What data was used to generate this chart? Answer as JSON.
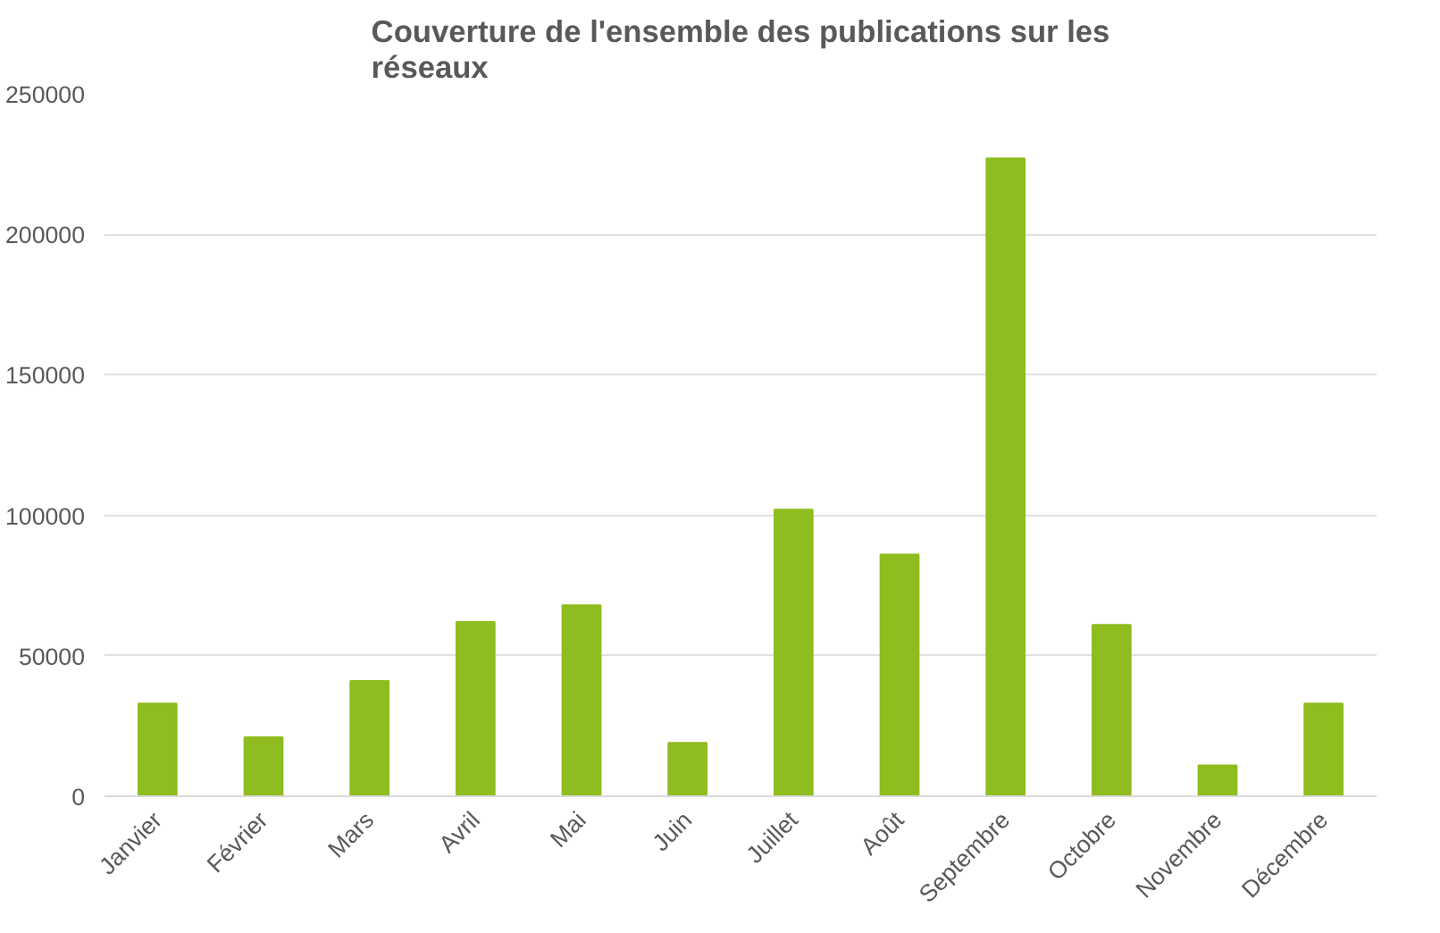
{
  "chart_data": {
    "type": "bar",
    "title": "Couverture de l'ensemble des publications sur les réseaux",
    "categories": [
      "Janvier",
      "Février",
      "Mars",
      "Avril",
      "Mai",
      "Juin",
      "Juillet",
      "Août",
      "Septembre",
      "Octobre",
      "Novembre",
      "Décembre"
    ],
    "values": [
      33000,
      21000,
      41000,
      62000,
      68000,
      19000,
      102000,
      86000,
      227000,
      61000,
      11000,
      33000
    ],
    "color": "#8fbc1f",
    "ylim": [
      0,
      250000
    ],
    "yticks": [
      0,
      50000,
      100000,
      150000,
      200000,
      250000
    ],
    "grid": "y"
  }
}
